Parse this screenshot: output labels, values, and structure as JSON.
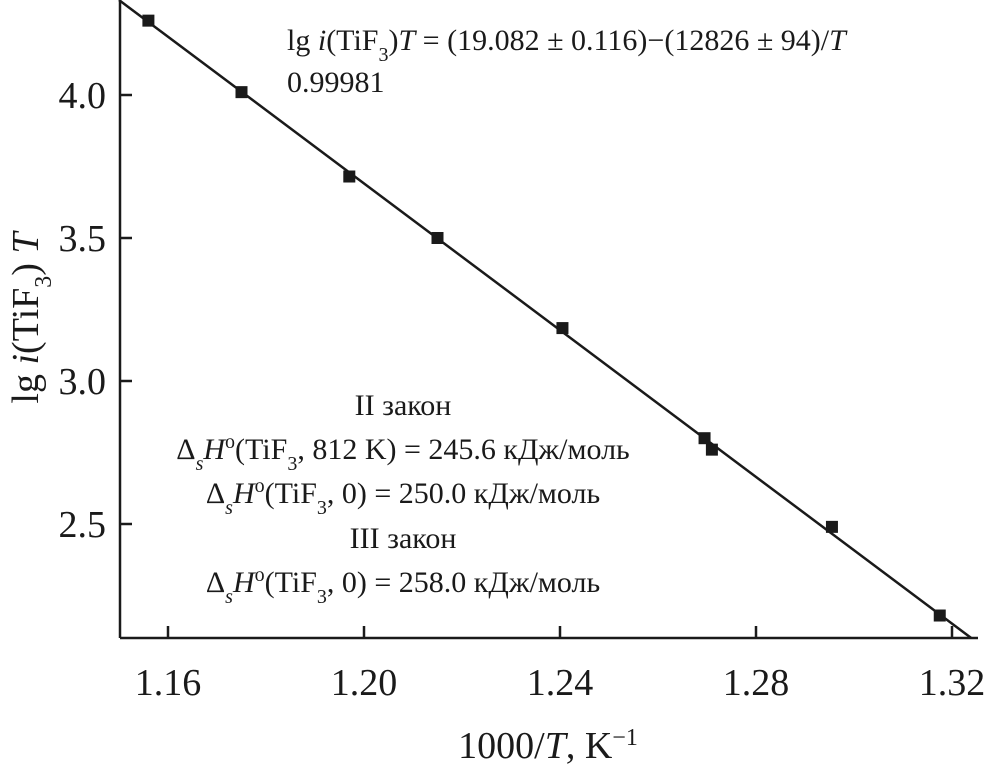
{
  "chart_data": {
    "type": "scatter",
    "xlabel": "1000/T, K−1",
    "ylabel": "lg i(TiF3) T",
    "xlim": [
      1.15,
      1.325
    ],
    "ylim": [
      2.1,
      4.32
    ],
    "xticks": [
      1.16,
      1.2,
      1.24,
      1.28,
      1.32
    ],
    "yticks": [
      2.5,
      3.0,
      3.5,
      4.0
    ],
    "xtick_labels": [
      "1.16",
      "1.20",
      "1.24",
      "1.28",
      "1.32"
    ],
    "ytick_labels": [
      "2.5",
      "3.0",
      "3.5",
      "4.0"
    ],
    "grid": false,
    "series": [
      {
        "marker": "square",
        "color": "#1a1a1a",
        "points": [
          {
            "x": 1.156,
            "y": 4.26
          },
          {
            "x": 1.175,
            "y": 4.01
          },
          {
            "x": 1.197,
            "y": 3.715
          },
          {
            "x": 1.215,
            "y": 3.5
          },
          {
            "x": 1.2405,
            "y": 3.185
          },
          {
            "x": 1.2695,
            "y": 2.8
          },
          {
            "x": 1.271,
            "y": 2.76
          },
          {
            "x": 1.2955,
            "y": 2.49
          },
          {
            "x": 1.3175,
            "y": 2.18
          }
        ]
      }
    ],
    "fit_line": {
      "intercept": 19.082,
      "slope": -12.826,
      "x_range": [
        1.15,
        1.325
      ],
      "color": "#1a1a1a"
    },
    "annotations": {
      "equation": "lg i(TiF3) T = (19.082 ± 0.116)−(12826 ± 94)/T",
      "r_value": "0.99981",
      "law2_title": "II закон",
      "law2_line1": "ΔsHo(TiF3, 812 K) = 245.6 кДж/моль",
      "law2_line2": "ΔsHo(TiF3, 0) = 250.0 кДж/моль",
      "law3_title": "III закон",
      "law3_line1": "ΔsHo(TiF3, 0) = 258.0 кДж/моль"
    }
  }
}
